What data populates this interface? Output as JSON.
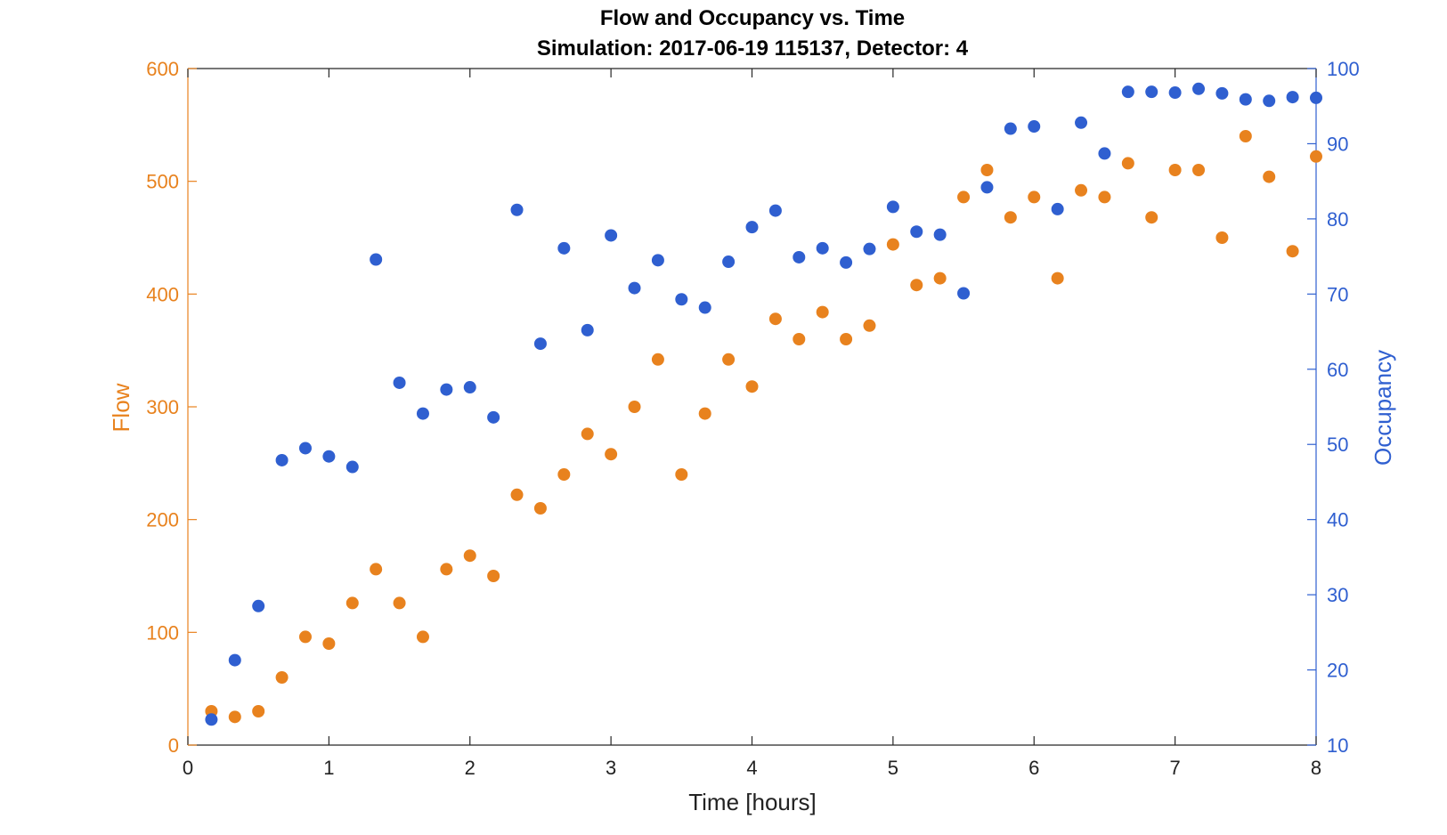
{
  "chart_data": {
    "type": "scatter",
    "title": "Flow and Occupancy vs. Time",
    "subtitle": "Simulation:  2017-06-19 115137,  Detector:  4",
    "xlabel": "Time [hours]",
    "ylabel_left": "Flow",
    "ylabel_right": "Occupancy",
    "xlim": [
      0,
      8
    ],
    "ylim_left": [
      0,
      600
    ],
    "ylim_right": [
      10,
      100
    ],
    "x_ticks": [
      0,
      1,
      2,
      3,
      4,
      5,
      6,
      7,
      8
    ],
    "y_left_ticks": [
      0,
      100,
      200,
      300,
      400,
      500,
      600
    ],
    "y_right_ticks": [
      10,
      20,
      30,
      40,
      50,
      60,
      70,
      80,
      90,
      100
    ],
    "grid": false,
    "colors": {
      "flow": "#e8821e",
      "occupancy": "#2f5fd0"
    },
    "x": [
      0.1667,
      0.3333,
      0.5,
      0.6667,
      0.8333,
      1.0,
      1.1667,
      1.3333,
      1.5,
      1.6667,
      1.8333,
      2.0,
      2.1667,
      2.3333,
      2.5,
      2.6667,
      2.8333,
      3.0,
      3.1667,
      3.3333,
      3.5,
      3.6667,
      3.8333,
      4.0,
      4.1667,
      4.3333,
      4.5,
      4.6667,
      4.8333,
      5.0,
      5.1667,
      5.3333,
      5.5,
      5.6667,
      5.8333,
      6.0,
      6.1667,
      6.3333,
      6.5,
      6.6667,
      6.8333,
      7.0,
      7.1667,
      7.3333,
      7.5,
      7.6667,
      7.8333,
      8.0
    ],
    "series": [
      {
        "name": "Flow",
        "axis": "left",
        "values": [
          30,
          25,
          30,
          60,
          96,
          90,
          126,
          156,
          126,
          96,
          156,
          168,
          150,
          222,
          210,
          240,
          276,
          258,
          300,
          342,
          240,
          294,
          342,
          318,
          378,
          360,
          384,
          360,
          372,
          444,
          408,
          414,
          486,
          510,
          468,
          486,
          414,
          492,
          486,
          516,
          468,
          510,
          510,
          450,
          540,
          504,
          438,
          522
        ]
      },
      {
        "name": "Occupancy",
        "axis": "right",
        "values": [
          13.4,
          21.3,
          28.5,
          47.9,
          49.5,
          48.4,
          47.0,
          74.6,
          58.2,
          54.1,
          57.3,
          57.6,
          53.6,
          81.2,
          63.4,
          76.1,
          65.2,
          77.8,
          70.8,
          74.5,
          69.3,
          68.2,
          74.3,
          78.9,
          81.1,
          74.9,
          76.1,
          74.2,
          76.0,
          81.6,
          78.3,
          77.9,
          70.1,
          84.2,
          92.0,
          92.3,
          81.3,
          92.8,
          88.7,
          96.9,
          96.9,
          96.8,
          97.3,
          96.7,
          95.9,
          95.7,
          96.2,
          96.1
        ]
      }
    ]
  }
}
